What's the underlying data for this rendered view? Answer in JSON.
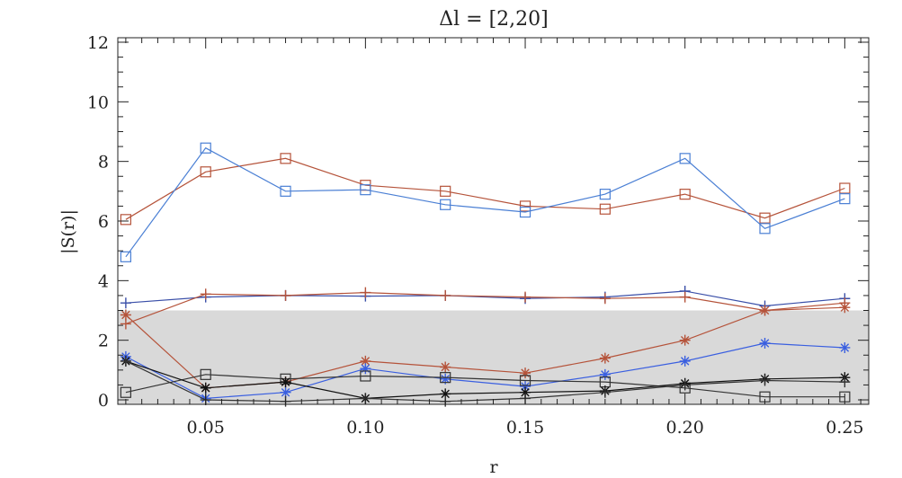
{
  "chart_data": {
    "type": "line",
    "title": "Δl = [2,20]",
    "xlabel": "r",
    "ylabel": "|S(r)|",
    "xlim": [
      0.0225,
      0.2575
    ],
    "ylim": [
      -0.15,
      12.15
    ],
    "xticks": [
      0.05,
      0.1,
      0.15,
      0.2,
      0.25
    ],
    "xtick_labels": [
      "0.05",
      "0.10",
      "0.15",
      "0.20",
      "0.25"
    ],
    "yticks": [
      0,
      2,
      4,
      6,
      8,
      10,
      12
    ],
    "ytick_labels": [
      "0",
      "2",
      "4",
      "6",
      "8",
      "10",
      "12"
    ],
    "shaded_band": {
      "y_from": 0,
      "y_to": 3.0,
      "color": "#d9d9d9"
    },
    "grid": false,
    "x": [
      0.025,
      0.05,
      0.075,
      0.1,
      0.125,
      0.15,
      0.175,
      0.2,
      0.225,
      0.25
    ],
    "series": [
      {
        "name": "red squares",
        "color": "#b5533a",
        "marker": "square",
        "values": [
          6.05,
          7.65,
          8.1,
          7.2,
          7.0,
          6.5,
          6.4,
          6.9,
          6.1,
          7.1
        ]
      },
      {
        "name": "blue squares",
        "color": "#4a7fd4",
        "marker": "square",
        "values": [
          4.8,
          8.45,
          7.0,
          7.05,
          6.55,
          6.3,
          6.9,
          8.1,
          5.75,
          6.75
        ]
      },
      {
        "name": "blue plus",
        "color": "#3a4fa8",
        "marker": "plus",
        "values": [
          3.25,
          3.45,
          3.5,
          3.48,
          3.5,
          3.4,
          3.45,
          3.65,
          3.15,
          3.4
        ]
      },
      {
        "name": "red plus",
        "color": "#b5533a",
        "marker": "plus",
        "values": [
          2.55,
          3.55,
          3.5,
          3.6,
          3.5,
          3.45,
          3.4,
          3.45,
          3.0,
          3.25
        ]
      },
      {
        "name": "red asterisk",
        "color": "#b5533a",
        "marker": "asterisk",
        "values": [
          2.85,
          0.4,
          0.6,
          1.3,
          1.1,
          0.9,
          1.4,
          2.0,
          3.0,
          3.1
        ]
      },
      {
        "name": "blue asterisk",
        "color": "#3a5fe0",
        "marker": "asterisk",
        "values": [
          1.45,
          0.05,
          0.25,
          1.05,
          0.7,
          0.45,
          0.85,
          1.3,
          1.9,
          1.75
        ]
      },
      {
        "name": "black squares",
        "color": "#333333",
        "marker": "square",
        "values": [
          0.25,
          0.85,
          0.7,
          0.8,
          0.75,
          0.65,
          0.6,
          0.4,
          0.1,
          0.1
        ]
      },
      {
        "name": "black asterisk",
        "color": "#111111",
        "marker": "asterisk",
        "values": [
          1.3,
          0.4,
          0.6,
          0.05,
          0.2,
          0.25,
          0.3,
          0.55,
          0.7,
          0.75
        ]
      },
      {
        "name": "black plus",
        "color": "#333333",
        "marker": "plus",
        "values": [
          1.3,
          0.0,
          -0.05,
          0.05,
          -0.05,
          0.05,
          0.25,
          0.5,
          0.65,
          0.6
        ]
      }
    ]
  }
}
